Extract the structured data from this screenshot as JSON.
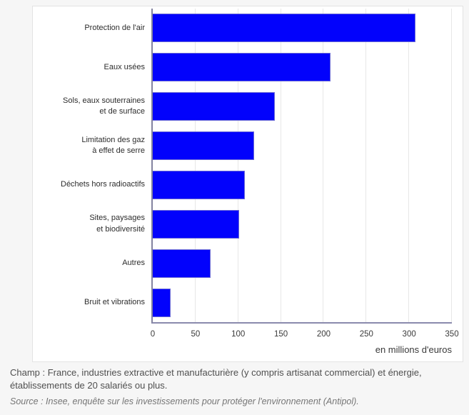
{
  "chart_data": {
    "type": "bar",
    "orientation": "horizontal",
    "title": "",
    "categories": [
      "Protection de l'air",
      "Eaux usées",
      "Sols, eaux souterraines\net de surface",
      "Limitation des gaz\nà effet de serre",
      "Déchets hors radioactifs",
      "Sites, paysages\net biodiversité",
      "Autres",
      "Bruit et vibrations"
    ],
    "values": [
      307,
      208,
      143,
      119,
      108,
      101,
      68,
      21
    ],
    "xlabel": "en millions d'euros",
    "xlim": [
      0,
      350
    ],
    "xticks": [
      0,
      50,
      100,
      150,
      200,
      250,
      300,
      350
    ],
    "grid": true,
    "legend": "none",
    "bar_color": "#0202fc"
  },
  "footer": {
    "champ": "Champ : France, industries extractive et manufacturière (y compris artisanat commercial) et énergie,\nétablissements de 20 salariés ou plus.",
    "source": "Source : Insee, enquête sur les investissements pour protéger l'environnement (Antipol)."
  },
  "colors": {
    "bar": "#0202fc",
    "bar_border": "#6b6bd6",
    "axis": "#8a8aad",
    "grid": "#e7e7e7",
    "page_bg": "#f6f6f6",
    "card_bg": "#ffffff",
    "card_border": "#e3e3e3"
  }
}
